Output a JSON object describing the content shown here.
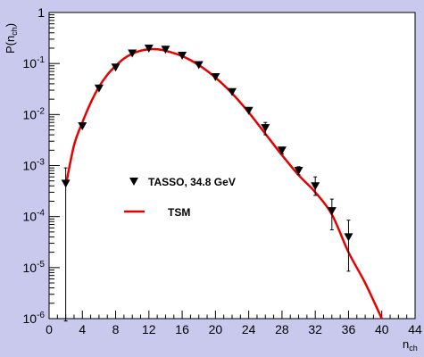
{
  "chart_data": {
    "type": "scatter",
    "xlabel": "n",
    "xlabel_sub": "ch",
    "ylabel_main": "P(n",
    "ylabel_sub": "ch",
    "ylabel_close": ")",
    "xlim": [
      0,
      44
    ],
    "ylim": [
      1e-06,
      1
    ],
    "y_scale": "log",
    "x_ticks": [
      0,
      4,
      8,
      12,
      16,
      20,
      24,
      28,
      32,
      36,
      40,
      44
    ],
    "y_ticks": [
      {
        "value": 1,
        "mantissa": "1",
        "exponent": ""
      },
      {
        "value": 0.1,
        "mantissa": "10",
        "exponent": "-1"
      },
      {
        "value": 0.01,
        "mantissa": "10",
        "exponent": "-2"
      },
      {
        "value": 0.001,
        "mantissa": "10",
        "exponent": "-3"
      },
      {
        "value": 0.0001,
        "mantissa": "10",
        "exponent": "-4"
      },
      {
        "value": 1e-05,
        "mantissa": "10",
        "exponent": "-5"
      },
      {
        "value": 1e-06,
        "mantissa": "10",
        "exponent": "-6"
      }
    ],
    "legend": [
      {
        "label": "TASSO, 34.8 GeV",
        "marker": "triangle-down",
        "color": "#000000"
      },
      {
        "label": "TSM",
        "marker": "line",
        "color": "#e60000"
      }
    ],
    "series": [
      {
        "name": "TASSO, 34.8 GeV",
        "marker": "triangle-down",
        "color": "#000000",
        "points": [
          {
            "x": 2,
            "y": 0.00045,
            "err_lo": 9e-07,
            "err_hi": 0.0009
          },
          {
            "x": 4,
            "y": 0.006
          },
          {
            "x": 6,
            "y": 0.033
          },
          {
            "x": 8,
            "y": 0.085
          },
          {
            "x": 10,
            "y": 0.16
          },
          {
            "x": 12,
            "y": 0.2
          },
          {
            "x": 14,
            "y": 0.19
          },
          {
            "x": 16,
            "y": 0.145
          },
          {
            "x": 18,
            "y": 0.095
          },
          {
            "x": 20,
            "y": 0.055
          },
          {
            "x": 22,
            "y": 0.028
          },
          {
            "x": 24,
            "y": 0.012
          },
          {
            "x": 26,
            "y": 0.0055,
            "err_lo": 0.004,
            "err_hi": 0.007
          },
          {
            "x": 28,
            "y": 0.002,
            "err_lo": 0.0017,
            "err_hi": 0.0023
          },
          {
            "x": 30,
            "y": 0.0008,
            "err_lo": 0.00066,
            "err_hi": 0.00095
          },
          {
            "x": 32,
            "y": 0.0004,
            "err_lo": 0.00026,
            "err_hi": 0.0006
          },
          {
            "x": 34,
            "y": 0.00013,
            "err_lo": 5.5e-05,
            "err_hi": 0.00022
          },
          {
            "x": 36,
            "y": 4e-05,
            "err_lo": 8.5e-06,
            "err_hi": 8.5e-05
          }
        ]
      },
      {
        "name": "TSM",
        "color": "#e60000",
        "line": true,
        "points": [
          {
            "x": 2,
            "y": 0.0004
          },
          {
            "x": 3,
            "y": 0.0025
          },
          {
            "x": 4,
            "y": 0.007
          },
          {
            "x": 5,
            "y": 0.017
          },
          {
            "x": 6,
            "y": 0.035
          },
          {
            "x": 7,
            "y": 0.06
          },
          {
            "x": 8,
            "y": 0.09
          },
          {
            "x": 9,
            "y": 0.125
          },
          {
            "x": 10,
            "y": 0.155
          },
          {
            "x": 11,
            "y": 0.178
          },
          {
            "x": 12,
            "y": 0.19
          },
          {
            "x": 13,
            "y": 0.19
          },
          {
            "x": 14,
            "y": 0.178
          },
          {
            "x": 16,
            "y": 0.14
          },
          {
            "x": 18,
            "y": 0.093
          },
          {
            "x": 20,
            "y": 0.053
          },
          {
            "x": 22,
            "y": 0.026
          },
          {
            "x": 24,
            "y": 0.011
          },
          {
            "x": 26,
            "y": 0.0042
          },
          {
            "x": 28,
            "y": 0.0016
          },
          {
            "x": 30,
            "y": 0.00065
          },
          {
            "x": 32,
            "y": 0.0003
          },
          {
            "x": 34,
            "y": 0.00011
          },
          {
            "x": 36,
            "y": 2e-05
          },
          {
            "x": 38,
            "y": 5e-06
          },
          {
            "x": 40,
            "y": 1e-06
          }
        ]
      }
    ]
  }
}
